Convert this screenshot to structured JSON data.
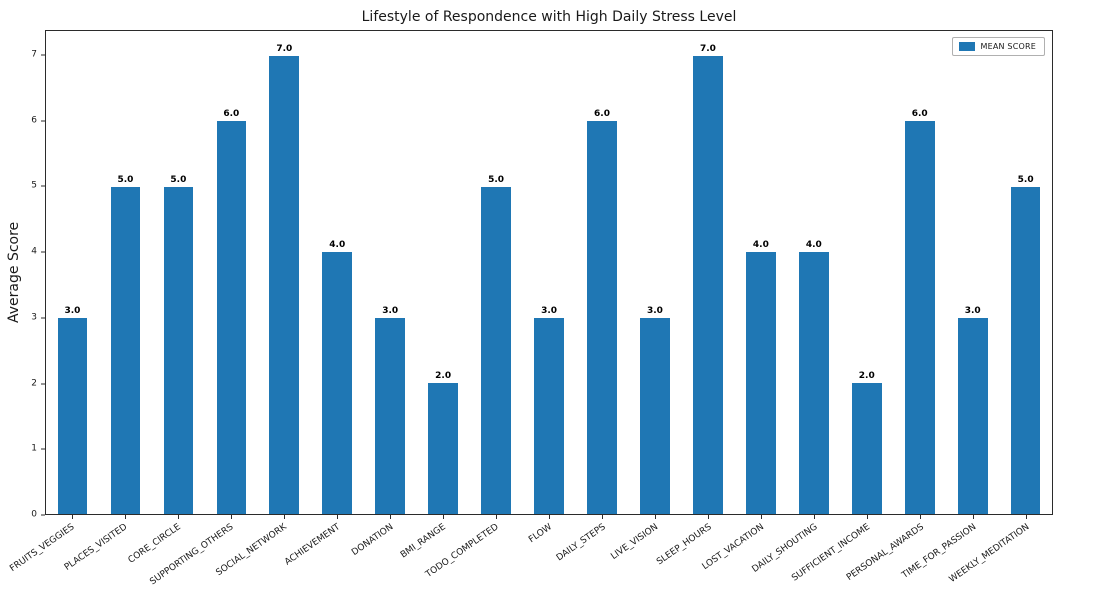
{
  "chart_data": {
    "type": "bar",
    "title": "Lifestyle of Respondence with High Daily Stress Level",
    "xlabel": "",
    "ylabel": "Average Score",
    "legend": "MEAN SCORE",
    "legend_position": "upper right",
    "grid": false,
    "bar_color": "#1f77b4",
    "categories": [
      "FRUITS_VEGGIES",
      "PLACES_VISITED",
      "CORE_CIRCLE",
      "SUPPORTING_OTHERS",
      "SOCIAL_NETWORK",
      "ACHIEVEMENT",
      "DONATION",
      "BMI_RANGE",
      "TODO_COMPLETED",
      "FLOW",
      "DAILY_STEPS",
      "LIVE_VISION",
      "SLEEP_HOURS",
      "LOST_VACATION",
      "DAILY_SHOUTING",
      "SUFFICIENT_INCOME",
      "PERSONAL_AWARDS",
      "TIME_FOR_PASSION",
      "WEEKLY_MEDITATION"
    ],
    "values": [
      3,
      5,
      5,
      6,
      7,
      4,
      3,
      2,
      5,
      3,
      6,
      3,
      7,
      4,
      4,
      2,
      6,
      3,
      5
    ],
    "value_labels": [
      "3.0",
      "5.0",
      "5.0",
      "6.0",
      "7.0",
      "4.0",
      "3.0",
      "2.0",
      "5.0",
      "3.0",
      "6.0",
      "3.0",
      "7.0",
      "4.0",
      "4.0",
      "2.0",
      "6.0",
      "3.0",
      "5.0"
    ],
    "yticks": [
      0,
      1,
      2,
      3,
      4,
      5,
      6,
      7
    ],
    "ylim": [
      0,
      7.38
    ]
  }
}
